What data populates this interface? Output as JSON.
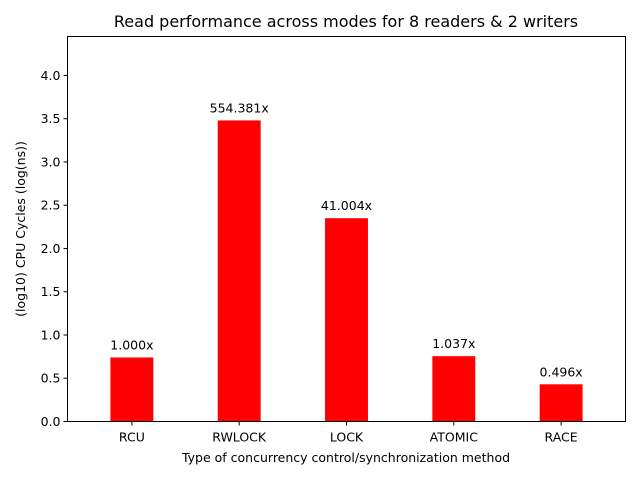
{
  "chart_data": {
    "type": "bar",
    "title": "Read performance across modes for 8 readers & 2 writers",
    "xlabel": "Type of concurrency control/synchronization method",
    "ylabel": "(log10) CPU Cycles (log(ns))",
    "categories": [
      "RCU",
      "RWLOCK",
      "LOCK",
      "ATOMIC",
      "RACE"
    ],
    "values": [
      0.74,
      3.48,
      2.35,
      0.755,
      0.43
    ],
    "data_labels": [
      "1.000x",
      "554.381x",
      "41.004x",
      "1.037x",
      "0.496x"
    ],
    "ylim": [
      0,
      4.45
    ],
    "yticks": [
      "0.0",
      "0.5",
      "1.0",
      "1.5",
      "2.0",
      "2.5",
      "3.0",
      "3.5",
      "4.0"
    ],
    "ytick_values": [
      0,
      0.5,
      1.0,
      1.5,
      2.0,
      2.5,
      3.0,
      3.5,
      4.0
    ],
    "bar_color": "#ff0000",
    "grid": false,
    "legend": "none"
  }
}
